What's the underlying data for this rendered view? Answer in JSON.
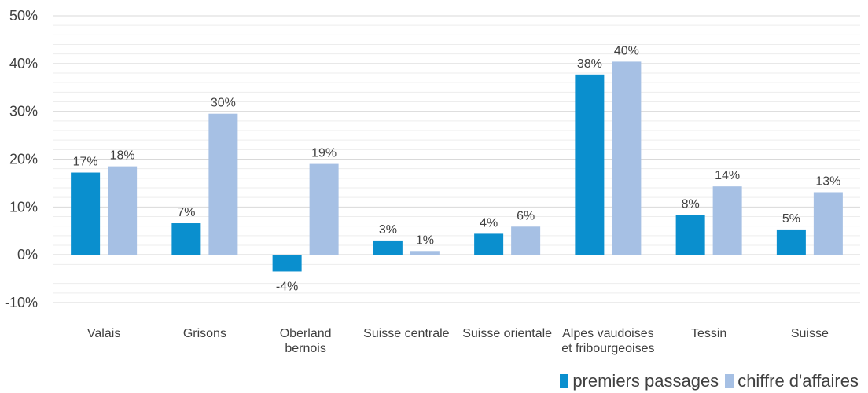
{
  "chart_data": {
    "type": "bar",
    "categories": [
      [
        "Valais"
      ],
      [
        "Grisons"
      ],
      [
        "Oberland",
        "bernois"
      ],
      [
        "Suisse centrale"
      ],
      [
        "Suisse orientale"
      ],
      [
        "Alpes vaudoises",
        "et fribourgeoises"
      ],
      [
        "Tessin"
      ],
      [
        "Suisse"
      ]
    ],
    "series": [
      {
        "name": "premiers passages",
        "color": "#0a8fce",
        "values": [
          17.2,
          6.6,
          -3.5,
          3.0,
          4.4,
          37.7,
          8.3,
          5.3
        ],
        "labels": [
          "17%",
          "7%",
          "-4%",
          "3%",
          "4%",
          "38%",
          "8%",
          "5%"
        ]
      },
      {
        "name": "chiffre d'affaires",
        "color": "#a6c0e4",
        "values": [
          18.5,
          29.5,
          19.0,
          0.8,
          5.9,
          40.4,
          14.3,
          13.1
        ],
        "labels": [
          "18%",
          "30%",
          "19%",
          "1%",
          "6%",
          "40%",
          "14%",
          "13%"
        ]
      }
    ],
    "ylim": [
      -10,
      50
    ],
    "yticks": [
      -10,
      0,
      10,
      20,
      30,
      40,
      50
    ],
    "ytick_labels": [
      "-10%",
      "0%",
      "10%",
      "20%",
      "30%",
      "40%",
      "50%"
    ],
    "grid": true,
    "legend_position": "bottom-right",
    "colors": {
      "grid_major": "#d9d9d9",
      "grid_minor": "#ededed",
      "text": "#404040"
    }
  }
}
